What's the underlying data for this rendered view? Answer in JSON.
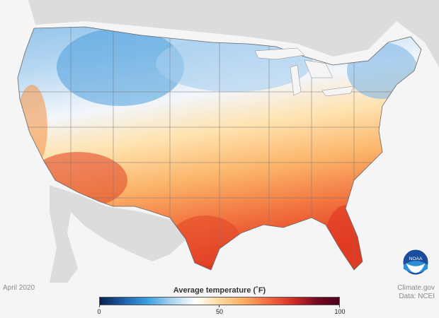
{
  "map": {
    "type": "choropleth-raster",
    "region": "Contiguous United States",
    "variable": "Average temperature",
    "unit": "°F",
    "basemap_color": "#dcdcdc",
    "ocean_color": "#f5f5f5",
    "state_border_color": "#777777"
  },
  "footer": {
    "period": "April 2020",
    "credit_line1": "Climate.gov",
    "credit_line2": "Data: NCEI"
  },
  "legend": {
    "title": "Average temperature (˚F)",
    "ticks": [
      "0",
      "50",
      "100"
    ],
    "min": 0,
    "max": 100,
    "colors": [
      "#0a1f4d",
      "#1e5fa8",
      "#3da0e0",
      "#a8d2f0",
      "#ffffff",
      "#ffd9a0",
      "#fdae61",
      "#f46d43",
      "#d73027",
      "#7a0a24",
      "#4a001a"
    ]
  },
  "logo": {
    "text": "NOAA",
    "icon": "noaa-logo"
  }
}
